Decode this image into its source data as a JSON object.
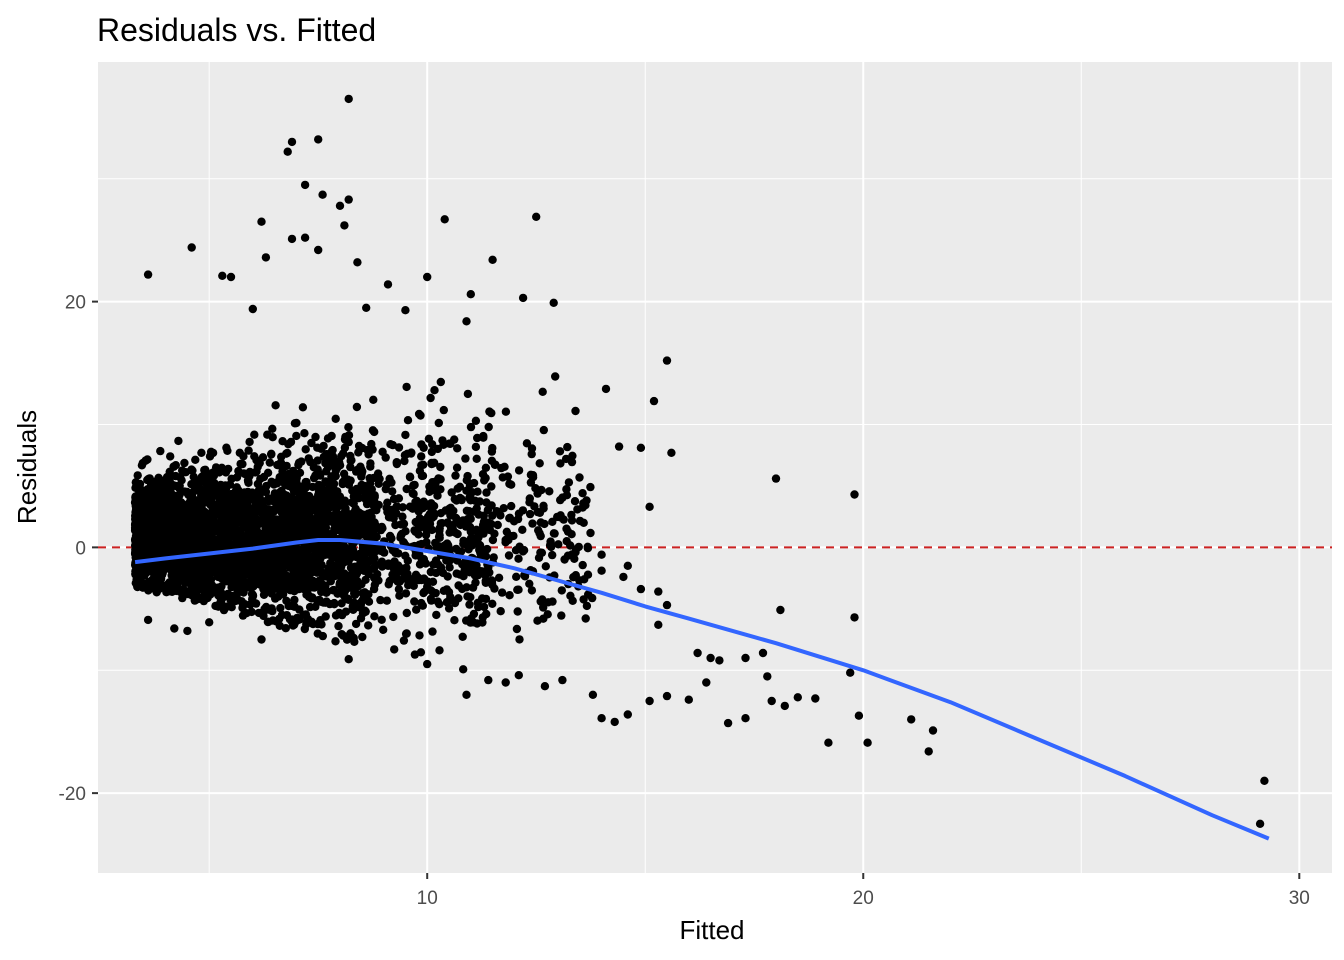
{
  "chart_data": {
    "type": "scatter",
    "title": "Residuals vs. Fitted",
    "xlabel": "Fitted",
    "ylabel": "Residuals",
    "xlim": [
      2.45,
      30.75
    ],
    "ylim": [
      -26.5,
      39.5
    ],
    "x_ticks": [
      10,
      20,
      30
    ],
    "x_tick_labels": [
      "10",
      "20",
      "30"
    ],
    "x_minor_ticks": [
      5,
      15,
      25
    ],
    "y_ticks": [
      -20,
      0,
      20
    ],
    "y_tick_labels": [
      "-20",
      "0",
      "20"
    ],
    "y_minor_ticks": [
      -10,
      10,
      30
    ],
    "grid": true,
    "colors": {
      "panel_background": "#EBEBEB",
      "grid": "#FFFFFF",
      "points": "#000000",
      "smooth_line": "#3366FF",
      "reference_line": "#CC2222"
    },
    "reference_line": {
      "y": 0,
      "style": "dashed"
    },
    "smooth_line": {
      "x": [
        3.3,
        4,
        5,
        6,
        7,
        7.5,
        8,
        9,
        10,
        11,
        12,
        13,
        14,
        15,
        16,
        18,
        20,
        22,
        24,
        26,
        28,
        29.3
      ],
      "y": [
        -1.2,
        -0.9,
        -0.5,
        -0.1,
        0.4,
        0.6,
        0.6,
        0.3,
        -0.3,
        -0.9,
        -1.7,
        -2.7,
        -3.7,
        -4.8,
        -5.8,
        -7.8,
        -10.0,
        -12.6,
        -15.6,
        -18.6,
        -21.8,
        -23.7
      ]
    },
    "series": [
      {
        "points": [
          [
            8.2,
            36.5
          ],
          [
            6.9,
            33.0
          ],
          [
            7.5,
            33.2
          ],
          [
            6.8,
            32.2
          ],
          [
            7.2,
            29.5
          ],
          [
            7.6,
            28.7
          ],
          [
            8.2,
            28.3
          ],
          [
            8.0,
            27.8
          ],
          [
            6.2,
            26.5
          ],
          [
            10.4,
            26.7
          ],
          [
            12.5,
            26.9
          ],
          [
            8.1,
            26.2
          ],
          [
            6.9,
            25.1
          ],
          [
            7.2,
            25.2
          ],
          [
            4.6,
            24.4
          ],
          [
            7.5,
            24.2
          ],
          [
            11.5,
            23.4
          ],
          [
            6.3,
            23.6
          ],
          [
            3.6,
            22.2
          ],
          [
            5.3,
            22.1
          ],
          [
            5.5,
            22.0
          ],
          [
            8.4,
            23.2
          ],
          [
            10.0,
            22.0
          ],
          [
            9.1,
            21.4
          ],
          [
            11.0,
            20.6
          ],
          [
            12.2,
            20.3
          ],
          [
            12.9,
            19.9
          ],
          [
            9.5,
            19.3
          ],
          [
            10.9,
            18.4
          ],
          [
            6.0,
            19.4
          ],
          [
            8.6,
            19.5
          ],
          [
            15.5,
            15.2
          ],
          [
            14.1,
            12.9
          ],
          [
            15.2,
            11.9
          ],
          [
            13.4,
            11.1
          ],
          [
            15.6,
            7.7
          ],
          [
            18.0,
            5.6
          ],
          [
            19.8,
            4.3
          ],
          [
            15.1,
            3.3
          ],
          [
            14.4,
            8.2
          ],
          [
            14.9,
            8.1
          ],
          [
            14.5,
            -2.4
          ],
          [
            14.9,
            -3.4
          ],
          [
            15.3,
            -3.6
          ],
          [
            15.5,
            -4.7
          ],
          [
            15.3,
            -6.3
          ],
          [
            16.2,
            -8.6
          ],
          [
            16.5,
            -9.0
          ],
          [
            16.7,
            -9.2
          ],
          [
            17.3,
            -9.0
          ],
          [
            17.7,
            -8.6
          ],
          [
            17.8,
            -10.5
          ],
          [
            17.9,
            -12.5
          ],
          [
            18.2,
            -12.9
          ],
          [
            18.1,
            -5.1
          ],
          [
            18.5,
            -12.2
          ],
          [
            18.9,
            -12.3
          ],
          [
            19.7,
            -10.2
          ],
          [
            19.8,
            -5.7
          ],
          [
            19.9,
            -13.7
          ],
          [
            16.4,
            -11.0
          ],
          [
            16.0,
            -12.4
          ],
          [
            15.1,
            -12.5
          ],
          [
            15.5,
            -12.1
          ],
          [
            16.9,
            -14.3
          ],
          [
            17.3,
            -13.9
          ],
          [
            19.2,
            -15.9
          ],
          [
            20.1,
            -15.9
          ],
          [
            21.1,
            -14.0
          ],
          [
            21.6,
            -14.9
          ],
          [
            21.5,
            -16.6
          ],
          [
            29.2,
            -19.0
          ],
          [
            29.1,
            -22.5
          ],
          [
            11.8,
            0.6
          ],
          [
            13.2,
            0.5
          ],
          [
            13.4,
            -0.4
          ],
          [
            14.0,
            -0.6
          ],
          [
            14.6,
            -1.5
          ],
          [
            14.0,
            -1.9
          ],
          [
            13.6,
            -2.6
          ],
          [
            12.4,
            -3.5
          ],
          [
            11.8,
            -11.0
          ],
          [
            12.1,
            -10.4
          ],
          [
            13.1,
            -10.8
          ],
          [
            13.8,
            -12.0
          ],
          [
            14.0,
            -13.9
          ],
          [
            14.3,
            -14.2
          ],
          [
            14.6,
            -13.6
          ],
          [
            12.7,
            -11.3
          ],
          [
            10.9,
            -12.0
          ],
          [
            11.4,
            -10.8
          ],
          [
            10.0,
            -9.5
          ],
          [
            8.2,
            -9.1
          ],
          [
            6.2,
            -7.5
          ],
          [
            5.0,
            -6.1
          ],
          [
            4.5,
            -6.8
          ],
          [
            3.6,
            -5.9
          ],
          [
            4.2,
            -6.6
          ]
        ]
      }
    ]
  }
}
